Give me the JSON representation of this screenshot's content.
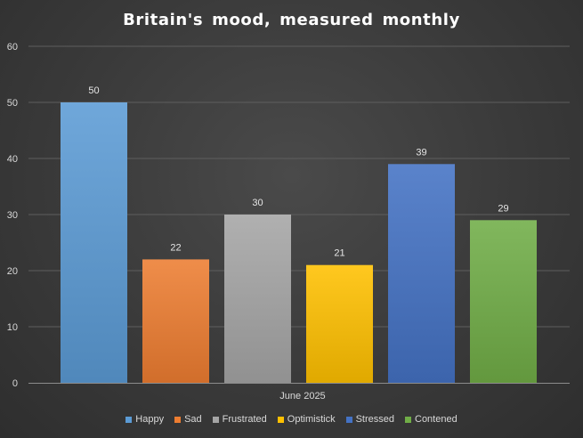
{
  "chart_data": {
    "type": "bar",
    "title": "Britain's mood, measured monthly",
    "categories": [
      "June 2025"
    ],
    "series": [
      {
        "name": "Happy",
        "values": [
          50
        ],
        "color": "#5b9bd5"
      },
      {
        "name": "Sad",
        "values": [
          22
        ],
        "color": "#ed7d31"
      },
      {
        "name": "Frustrated",
        "values": [
          30
        ],
        "color": "#a5a5a5"
      },
      {
        "name": "Optimistick",
        "values": [
          21
        ],
        "color": "#ffc000"
      },
      {
        "name": "Stressed",
        "values": [
          39
        ],
        "color": "#4472c4"
      },
      {
        "name": "Contened",
        "values": [
          29
        ],
        "color": "#70ad47"
      }
    ],
    "ylim": [
      0,
      60
    ],
    "yticks": [
      0,
      10,
      20,
      30,
      40,
      50,
      60
    ],
    "grid": true,
    "legend": "bottom",
    "data_labels": true
  }
}
